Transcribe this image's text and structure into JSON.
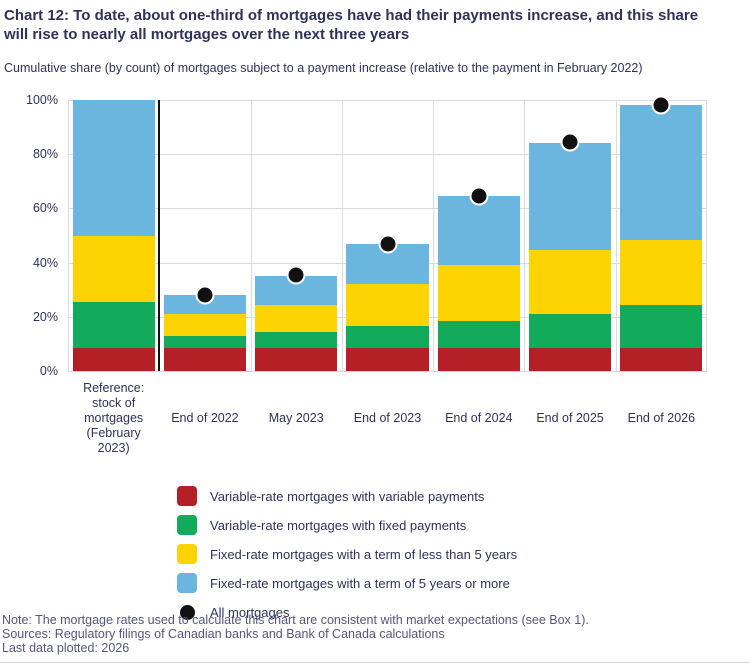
{
  "header": {
    "lines": [
      "Chart 12: To date, about one-third of mortgages have had their payments increase, and this share",
      "will rise to nearly all mortgages over the next three years"
    ]
  },
  "chart_data": {
    "type": "bar",
    "stacked": true,
    "title": "Chart 12: To date, about one-third of mortgages have had their payments increase, and this share will rise to nearly all mortgages over the next three years",
    "subtitle": "Cumulative share (by count) of mortgages subject to a payment increase (relative to the payment in February 2022)",
    "categories": [
      "Reference: stock of mortgages (February 2023)",
      "End of 2022",
      "May 2023",
      "End of 2023",
      "End of 2024",
      "End of 2025",
      "End of 2026"
    ],
    "category_label_lines": [
      [
        "Reference:",
        "stock of",
        "mortgages",
        "(February",
        "2023)"
      ],
      [
        "End of 2022"
      ],
      [
        "May 2023"
      ],
      [
        "End of 2023"
      ],
      [
        "End of 2024"
      ],
      [
        "End of 2025"
      ],
      [
        "End of 2026"
      ]
    ],
    "series": [
      {
        "name": "Variable-rate mortgages with variable payments",
        "color": "#b42025",
        "values": [
          8.5,
          8.5,
          8.5,
          8.5,
          8.5,
          8.5,
          8.5
        ]
      },
      {
        "name": "Variable-rate mortgages with fixed payments",
        "color": "#12ab5c",
        "values": [
          17,
          4.5,
          6,
          8,
          10,
          12.5,
          16
        ]
      },
      {
        "name": "Fixed-rate mortgages with a term of less than 5 years",
        "color": "#fdd401",
        "values": [
          24.5,
          8,
          10,
          15.5,
          20.5,
          23.5,
          24
        ]
      },
      {
        "name": "Fixed-rate mortgages with a term of 5 years or more",
        "color": "#6ab6de",
        "values": [
          50,
          7,
          10.5,
          15,
          25.5,
          39.5,
          49.5
        ]
      }
    ],
    "dot_series": {
      "name": "All mortgages",
      "color": "#111111",
      "values": [
        null,
        28,
        35.5,
        47,
        64.5,
        84.5,
        98
      ]
    },
    "stack_totals": [
      100,
      28,
      35,
      47,
      64.5,
      84,
      98
    ],
    "ylim": [
      0,
      100
    ],
    "yticks": [
      {
        "value": 0,
        "label": "0%"
      },
      {
        "value": 20,
        "label": "20%"
      },
      {
        "value": 40,
        "label": "40%"
      },
      {
        "value": 60,
        "label": "60%"
      },
      {
        "value": 80,
        "label": "80%"
      },
      {
        "value": 100,
        "label": "100%"
      }
    ],
    "grid": "horizontal gridlines + light vertical column separators",
    "reference_divider_after_index": 0,
    "legend_position": "bottom"
  },
  "notes": {
    "note": "Note: The mortgage rates used to calculate this chart are consistent with market expectations (see Box 1).",
    "sources": "Sources: Regulatory filings of Canadian banks and Bank of Canada calculations",
    "last_plotted": "Last data plotted: 2026"
  }
}
